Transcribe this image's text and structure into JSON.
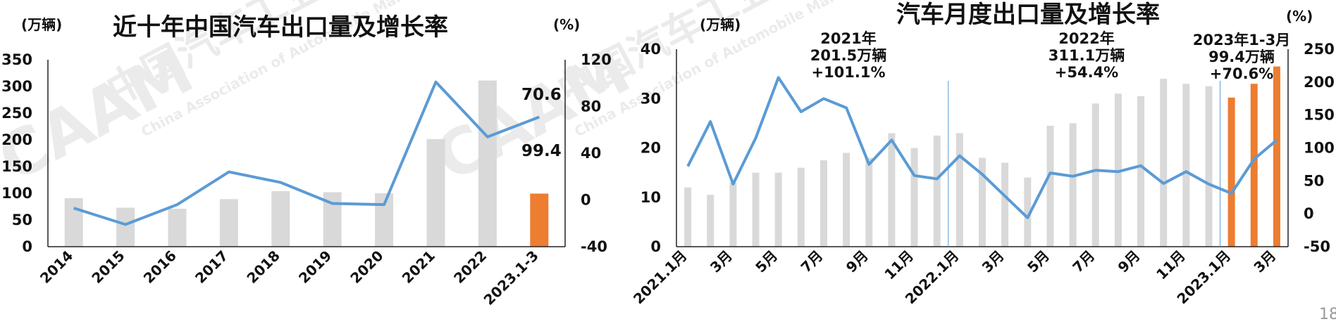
{
  "page_number": "18",
  "watermark": {
    "cn": "中国汽车工业协会",
    "en": "China Association of Automobile Manufacturers",
    "logo": "CAAM"
  },
  "colors": {
    "bar": "#d9d9d9",
    "bar_highlight": "#ed7d31",
    "line": "#5b9bd5"
  },
  "chart_data": [
    {
      "type": "bar",
      "title": "近十年中国汽车出口量及增长率",
      "ylabel": "(万辆)",
      "y2label": "(%)",
      "categories": [
        "2014",
        "2015",
        "2016",
        "2017",
        "2018",
        "2019",
        "2020",
        "2021",
        "2022",
        "2023.1-3"
      ],
      "ylim": [
        0,
        350
      ],
      "yticks": [
        "0",
        "50",
        "100",
        "150",
        "200",
        "250",
        "300",
        "350"
      ],
      "y2lim": [
        -40,
        120
      ],
      "y2ticks": [
        "-40",
        "0",
        "40",
        "80",
        "120"
      ],
      "series": [
        {
          "kind": "bar",
          "axis": "left",
          "values": [
            91,
            73,
            71,
            89,
            104,
            102,
            100,
            201.5,
            311.1,
            99.4
          ],
          "highlight": [
            9
          ]
        },
        {
          "kind": "line",
          "axis": "right",
          "values": [
            -7,
            -21,
            -4,
            24,
            15,
            -3,
            -4,
            101,
            54,
            71
          ]
        }
      ],
      "labels": [
        "70.6",
        "99.4"
      ],
      "grid": false
    },
    {
      "type": "bar",
      "title": "汽车月度出口量及增长率",
      "ylabel": "(万辆)",
      "y2label": "(%)",
      "categories": [
        "2021.1月",
        "",
        "3月",
        "",
        "5月",
        "",
        "7月",
        "",
        "9月",
        "",
        "11月",
        "",
        "2022.1月",
        "",
        "3月",
        "",
        "5月",
        "",
        "7月",
        "",
        "9月",
        "",
        "11月",
        "",
        "2023.1月",
        "",
        "3月"
      ],
      "ylim": [
        0,
        40
      ],
      "yticks": [
        "0",
        "10",
        "20",
        "30",
        "40"
      ],
      "y2lim": [
        -50,
        250
      ],
      "y2ticks": [
        "-50",
        "0",
        "50",
        "100",
        "150",
        "200",
        "250"
      ],
      "series": [
        {
          "kind": "bar",
          "axis": "left",
          "values": [
            12,
            10.5,
            13,
            15,
            15,
            16,
            17.5,
            19,
            18,
            23,
            20,
            22.5,
            23,
            18,
            17,
            14,
            24.5,
            25,
            29,
            31,
            30.5,
            34,
            33,
            32.5,
            30.2,
            33,
            36.5
          ],
          "highlight": [
            24,
            25,
            26
          ]
        },
        {
          "kind": "line",
          "axis": "right",
          "values": [
            72,
            140,
            45,
            115,
            207,
            155,
            175,
            161,
            75,
            112,
            58,
            53,
            88,
            60,
            27,
            -6,
            62,
            57,
            66,
            64,
            73,
            46,
            64,
            45,
            31,
            83,
            112
          ]
        }
      ],
      "dividers_after": [
        11,
        23
      ],
      "annotations": [
        {
          "lines": [
            "2021年",
            "201.5万辆",
            "+101.1%"
          ]
        },
        {
          "lines": [
            "2022年",
            "311.1万辆",
            "+54.4%"
          ]
        },
        {
          "lines": [
            "2023年1-3月",
            "99.4万辆",
            "+70.6%"
          ]
        }
      ],
      "grid": false
    }
  ]
}
